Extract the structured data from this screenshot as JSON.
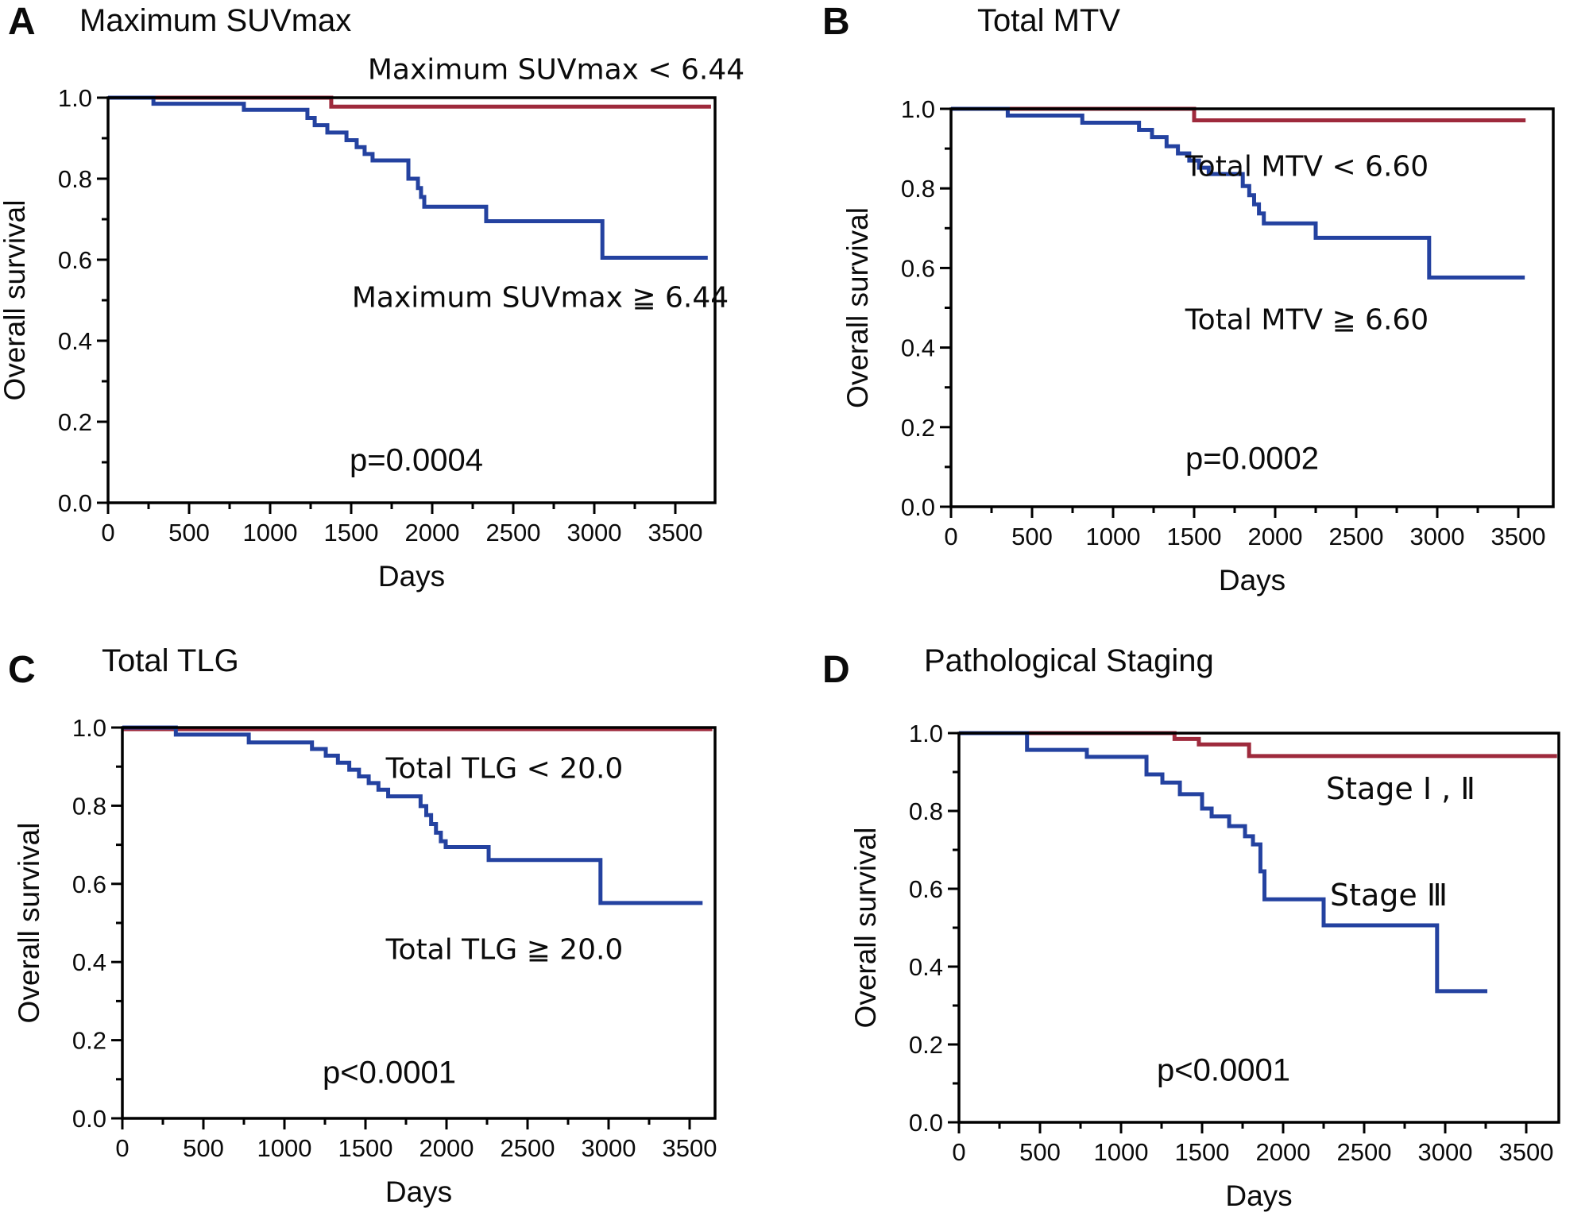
{
  "figure": {
    "background": "#ffffff"
  },
  "colors": {
    "red": "#9E2A3C",
    "blue": "#2442A0",
    "axis": "#000000",
    "text": "#111111"
  },
  "chart_data": {
    "type": "line",
    "subtype": "kaplan-meier-step-curves",
    "xlabel": "Days",
    "ylabel": "Overall survival",
    "x_ticks": [
      0,
      500,
      1000,
      1500,
      2000,
      2500,
      3000,
      3500
    ],
    "x_minor_step": 250,
    "y_ticks": [
      "0.0",
      "0.2",
      "0.4",
      "0.6",
      "0.8",
      "1.0"
    ],
    "y_minor_step": 0.1,
    "xlim": [
      0,
      3750
    ],
    "ylim": [
      0,
      1
    ],
    "grid": false,
    "legend_position": "inline-annotations",
    "panels": [
      {
        "letter": "A",
        "title": "Maximum SUVmax",
        "p_text": "p=0.0004",
        "series": [
          {
            "name": "Maximum SUVmax < 6.44",
            "color": "#9E2A3C",
            "steps": [
              [
                0,
                1.0
              ],
              [
                1377,
                0.978
              ]
            ],
            "end_day": 3720
          },
          {
            "name": "Maximum SUVmax ≧ 6.44",
            "color": "#2442A0",
            "steps": [
              [
                0,
                1.0
              ],
              [
                280,
                0.985
              ],
              [
                838,
                0.97
              ],
              [
                1230,
                0.95
              ],
              [
                1275,
                0.932
              ],
              [
                1353,
                0.914
              ],
              [
                1471,
                0.895
              ],
              [
                1534,
                0.878
              ],
              [
                1583,
                0.861
              ],
              [
                1632,
                0.845
              ],
              [
                1853,
                0.8
              ],
              [
                1912,
                0.777
              ],
              [
                1931,
                0.755
              ],
              [
                1951,
                0.731
              ],
              [
                2333,
                0.695
              ],
              [
                3050,
                0.605
              ]
            ],
            "end_day": 3700
          }
        ]
      },
      {
        "letter": "B",
        "title": "Total MTV",
        "p_text": "p=0.0002",
        "series": [
          {
            "name": "Total MTV < 6.60",
            "color": "#9E2A3C",
            "steps": [
              [
                0,
                1.0
              ],
              [
                1500,
                0.971
              ]
            ],
            "end_day": 3545
          },
          {
            "name": "Total MTV ≧ 6.60",
            "color": "#2442A0",
            "steps": [
              [
                0,
                1.0
              ],
              [
                350,
                0.983
              ],
              [
                810,
                0.965
              ],
              [
                1160,
                0.947
              ],
              [
                1240,
                0.929
              ],
              [
                1330,
                0.906
              ],
              [
                1400,
                0.888
              ],
              [
                1470,
                0.87
              ],
              [
                1530,
                0.852
              ],
              [
                1590,
                0.836
              ],
              [
                1800,
                0.806
              ],
              [
                1840,
                0.783
              ],
              [
                1870,
                0.76
              ],
              [
                1900,
                0.737
              ],
              [
                1930,
                0.712
              ],
              [
                2250,
                0.676
              ],
              [
                2950,
                0.576
              ]
            ],
            "end_day": 3540
          }
        ]
      },
      {
        "letter": "C",
        "title": "Total TLG",
        "p_text": "p<0.0001",
        "series": [
          {
            "name": "Total TLG < 20.0",
            "color": "#9E2A3C",
            "steps": [
              [
                0,
                0.996
              ]
            ],
            "end_day": 3640
          },
          {
            "name": "Total TLG ≧ 20.0",
            "color": "#2442A0",
            "steps": [
              [
                0,
                1.0
              ],
              [
                330,
                0.982
              ],
              [
                780,
                0.962
              ],
              [
                1170,
                0.945
              ],
              [
                1255,
                0.928
              ],
              [
                1330,
                0.91
              ],
              [
                1400,
                0.892
              ],
              [
                1460,
                0.875
              ],
              [
                1520,
                0.858
              ],
              [
                1580,
                0.841
              ],
              [
                1640,
                0.824
              ],
              [
                1840,
                0.799
              ],
              [
                1875,
                0.776
              ],
              [
                1905,
                0.753
              ],
              [
                1935,
                0.731
              ],
              [
                1965,
                0.709
              ],
              [
                1995,
                0.694
              ],
              [
                2260,
                0.661
              ],
              [
                2950,
                0.551
              ]
            ],
            "end_day": 3580
          }
        ]
      },
      {
        "letter": "D",
        "title": "Pathological Staging",
        "p_text": "p<0.0001",
        "series": [
          {
            "name": "Stage Ⅰ , Ⅱ",
            "color": "#9E2A3C",
            "steps": [
              [
                0,
                1.0
              ],
              [
                1330,
                0.985
              ],
              [
                1480,
                0.971
              ],
              [
                1790,
                0.941
              ]
            ],
            "end_day": 3690
          },
          {
            "name": "Stage Ⅲ",
            "color": "#2442A0",
            "steps": [
              [
                0,
                1.0
              ],
              [
                420,
                0.957
              ],
              [
                789,
                0.939
              ],
              [
                1157,
                0.894
              ],
              [
                1255,
                0.873
              ],
              [
                1363,
                0.843
              ],
              [
                1500,
                0.806
              ],
              [
                1559,
                0.786
              ],
              [
                1667,
                0.761
              ],
              [
                1765,
                0.735
              ],
              [
                1814,
                0.714
              ],
              [
                1860,
                0.645
              ],
              [
                1885,
                0.573
              ],
              [
                2250,
                0.506
              ],
              [
                2950,
                0.337
              ]
            ],
            "end_day": 3260
          }
        ]
      }
    ]
  }
}
